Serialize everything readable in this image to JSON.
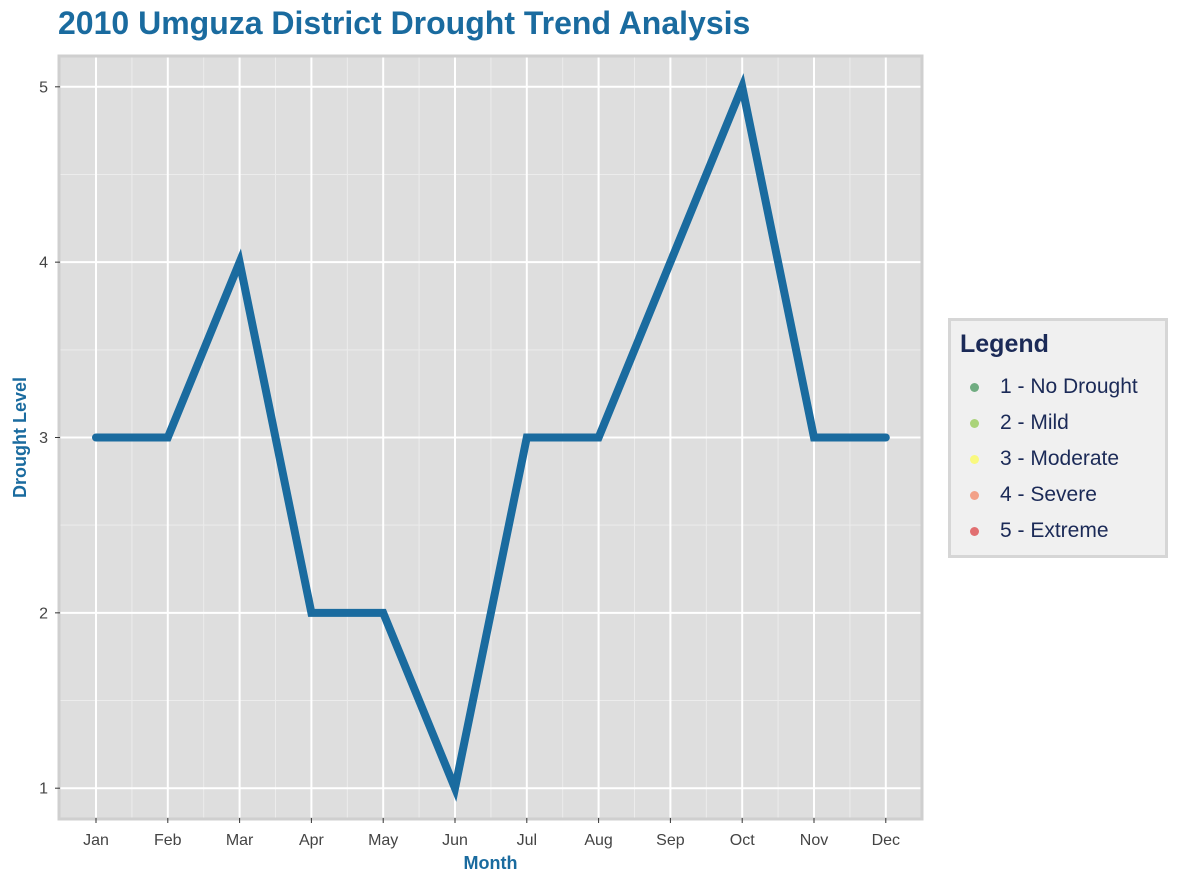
{
  "colors": {
    "title": "#1a6b9f",
    "line": "#1a6b9f",
    "panel_background": "#dedede",
    "panel_border": "#cfcfcf",
    "grid_major": "#ffffff",
    "grid_minor": "#ececec",
    "legend_text": "#1b2a57"
  },
  "legend": {
    "title": "Legend",
    "items": [
      {
        "label": "1 - No Drought",
        "color": "#1a7f37"
      },
      {
        "label": "2 - Mild",
        "color": "#7bbf2a"
      },
      {
        "label": "3 - Moderate",
        "color": "#ffff33"
      },
      {
        "label": "4 - Severe",
        "color": "#f46d43"
      },
      {
        "label": "5 - Extreme",
        "color": "#d7191c"
      }
    ]
  },
  "chart_data": {
    "type": "line",
    "title": "2010 Umguza District Drought Trend Analysis",
    "xlabel": "Month",
    "ylabel": "Drought Level",
    "categories": [
      "Jan",
      "Feb",
      "Mar",
      "Apr",
      "May",
      "Jun",
      "Jul",
      "Aug",
      "Sep",
      "Oct",
      "Nov",
      "Dec"
    ],
    "series": [
      {
        "values": [
          3,
          3,
          4,
          2,
          2,
          1,
          3,
          3,
          4,
          5,
          3,
          3
        ]
      }
    ],
    "ylim": [
      0.83,
      5.17
    ],
    "yticks": [
      1,
      2,
      3,
      4,
      5
    ],
    "grid": true,
    "legend_position": "right"
  }
}
